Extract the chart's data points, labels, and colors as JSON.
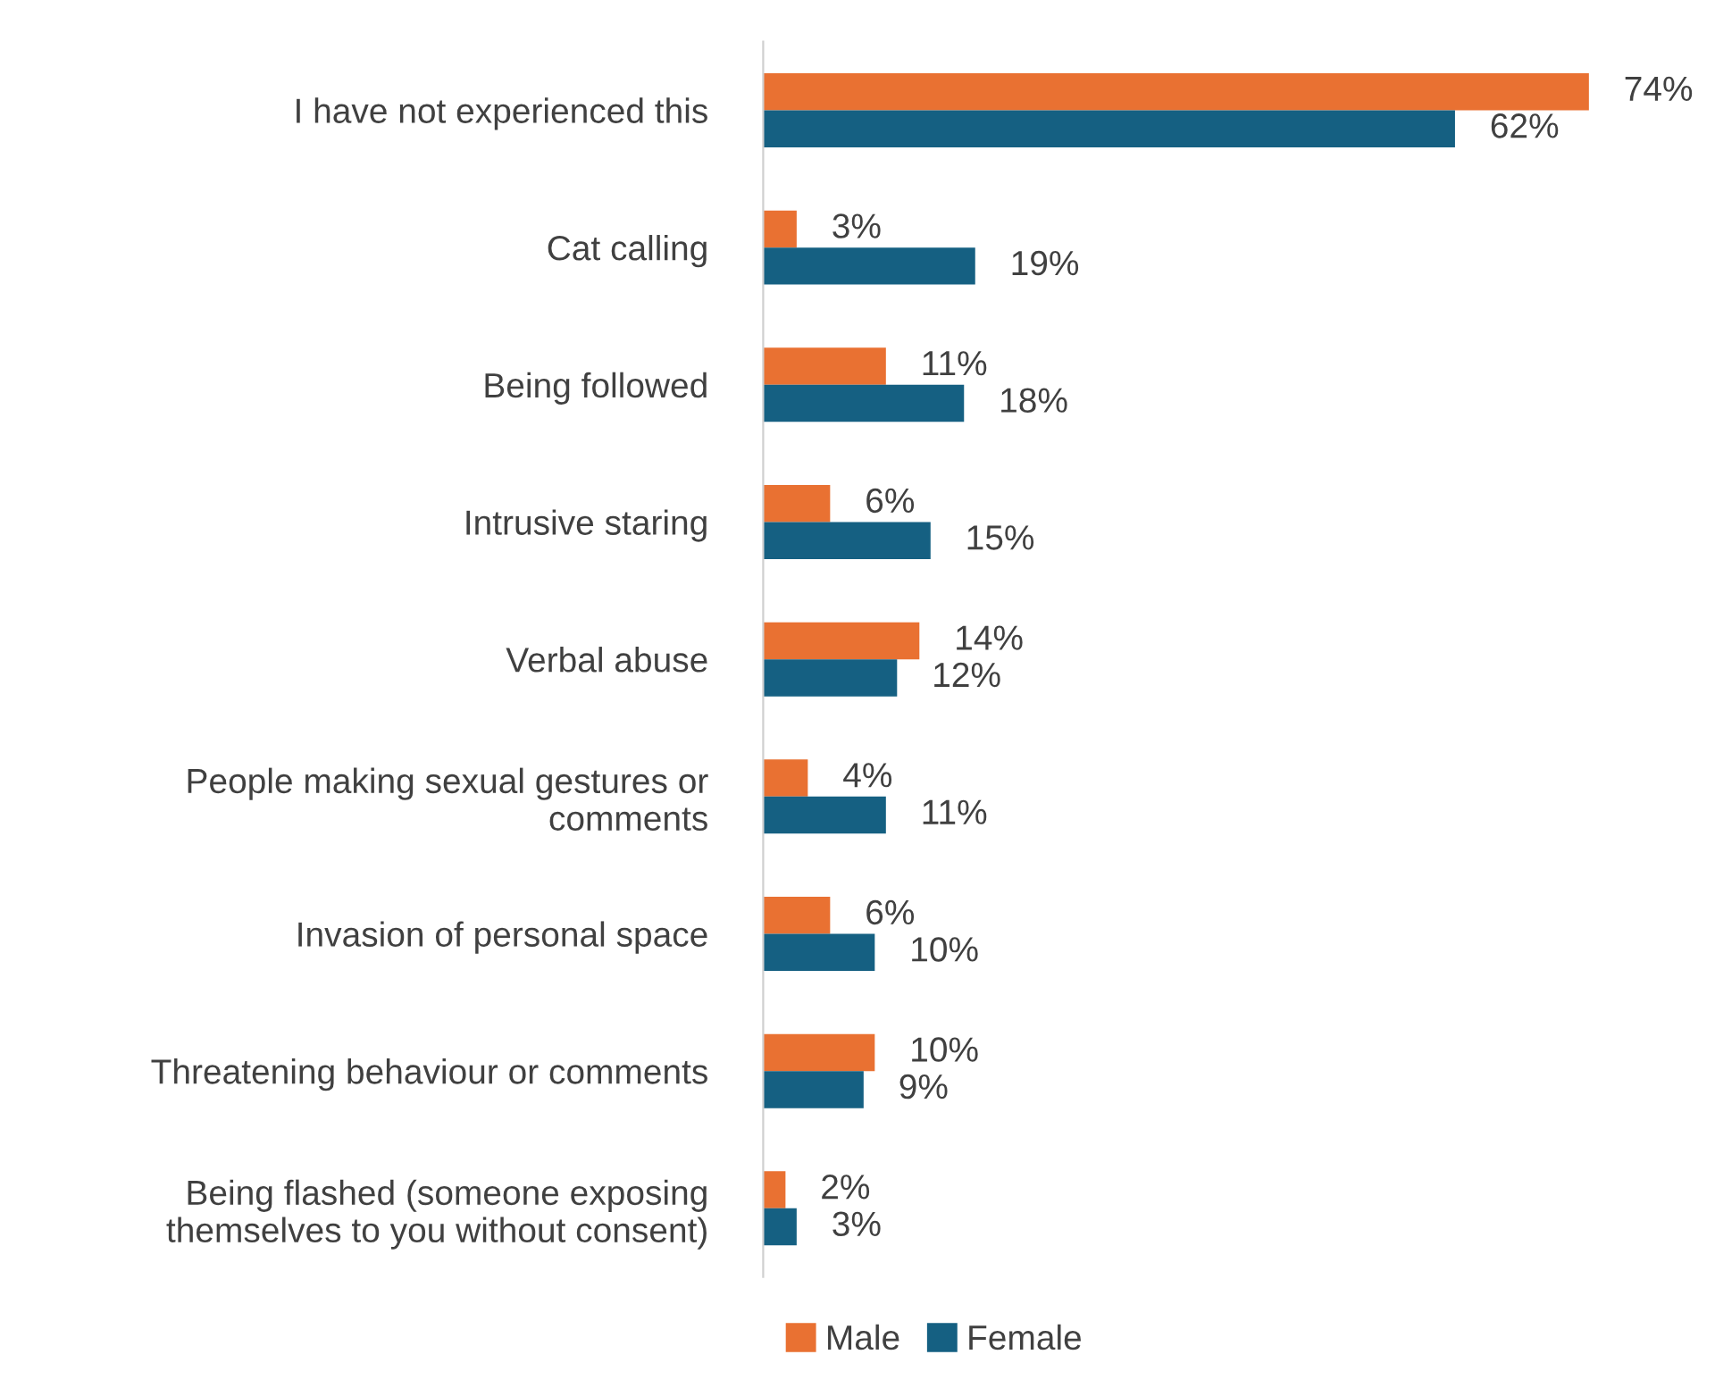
{
  "chart_data": {
    "type": "bar",
    "orientation": "horizontal",
    "legend": "bottom",
    "grid": false,
    "categories": [
      "I have not experienced this",
      "Cat calling",
      "Being followed",
      "Intrusive staring",
      "Verbal abuse",
      "People making sexual gestures or comments",
      "Invasion of personal space",
      "Threatening behaviour or comments",
      "Being flashed (someone exposing themselves to you without consent)"
    ],
    "series": [
      {
        "name": "Male",
        "color": "#e97132",
        "values": [
          74,
          3,
          11,
          6,
          14,
          4,
          6,
          10,
          2
        ],
        "value_labels": [
          "74%",
          "3%",
          "11%",
          "6%",
          "14%",
          "4%",
          "6%",
          "10%",
          "2%"
        ]
      },
      {
        "name": "Female",
        "color": "#156082",
        "values": [
          62,
          19,
          18,
          15,
          12,
          11,
          10,
          9,
          3
        ],
        "value_labels": [
          "62%",
          "19%",
          "18%",
          "15%",
          "12%",
          "11%",
          "10%",
          "9%",
          "3%"
        ]
      }
    ]
  }
}
